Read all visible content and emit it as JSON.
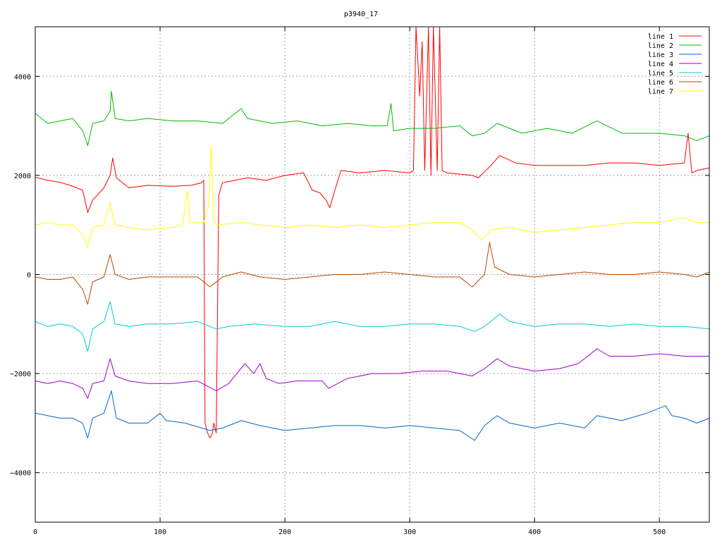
{
  "chart_data": {
    "type": "line",
    "title": "p3940_17",
    "xlabel": "",
    "ylabel": "",
    "xlim": [
      0,
      540
    ],
    "ylim": [
      -5000,
      5000
    ],
    "xticks": [
      0,
      100,
      200,
      300,
      400,
      500
    ],
    "yticks": [
      -4000,
      -2000,
      0,
      2000,
      4000
    ],
    "grid": true,
    "legend_position": "top-right",
    "series": [
      {
        "name": "line 1",
        "color": "#ff0000",
        "points": [
          [
            0,
            1960
          ],
          [
            10,
            1900
          ],
          [
            20,
            1860
          ],
          [
            30,
            1780
          ],
          [
            38,
            1700
          ],
          [
            42,
            1250
          ],
          [
            46,
            1500
          ],
          [
            55,
            1750
          ],
          [
            60,
            2000
          ],
          [
            62,
            2350
          ],
          [
            65,
            1950
          ],
          [
            75,
            1750
          ],
          [
            90,
            1800
          ],
          [
            110,
            1780
          ],
          [
            125,
            1800
          ],
          [
            133,
            1850
          ],
          [
            135,
            1900
          ],
          [
            136,
            -3000
          ],
          [
            138,
            -3200
          ],
          [
            140,
            -3300
          ],
          [
            142,
            -3200
          ],
          [
            143,
            -3000
          ],
          [
            145,
            -3200
          ],
          [
            147,
            1600
          ],
          [
            150,
            1850
          ],
          [
            160,
            1900
          ],
          [
            170,
            1950
          ],
          [
            185,
            1900
          ],
          [
            200,
            2000
          ],
          [
            215,
            2050
          ],
          [
            222,
            1700
          ],
          [
            228,
            1650
          ],
          [
            233,
            1500
          ],
          [
            236,
            1350
          ],
          [
            240,
            1700
          ],
          [
            245,
            2100
          ],
          [
            260,
            2050
          ],
          [
            280,
            2100
          ],
          [
            300,
            2050
          ],
          [
            303,
            2100
          ],
          [
            305,
            5000
          ],
          [
            308,
            3600
          ],
          [
            310,
            4700
          ],
          [
            312,
            2100
          ],
          [
            315,
            5000
          ],
          [
            317,
            2000
          ],
          [
            319,
            5000
          ],
          [
            322,
            2100
          ],
          [
            324,
            5000
          ],
          [
            326,
            2100
          ],
          [
            330,
            2050
          ],
          [
            350,
            2000
          ],
          [
            355,
            1950
          ],
          [
            365,
            2200
          ],
          [
            372,
            2400
          ],
          [
            385,
            2250
          ],
          [
            400,
            2200
          ],
          [
            420,
            2200
          ],
          [
            440,
            2200
          ],
          [
            460,
            2250
          ],
          [
            480,
            2250
          ],
          [
            500,
            2200
          ],
          [
            520,
            2250
          ],
          [
            523,
            2850
          ],
          [
            526,
            2050
          ],
          [
            530,
            2100
          ],
          [
            540,
            2150
          ]
        ]
      },
      {
        "name": "line 2",
        "color": "#00bb00",
        "points": [
          [
            0,
            3250
          ],
          [
            10,
            3050
          ],
          [
            20,
            3100
          ],
          [
            30,
            3150
          ],
          [
            38,
            2900
          ],
          [
            42,
            2600
          ],
          [
            46,
            3050
          ],
          [
            55,
            3100
          ],
          [
            60,
            3300
          ],
          [
            61,
            3700
          ],
          [
            64,
            3150
          ],
          [
            75,
            3100
          ],
          [
            90,
            3150
          ],
          [
            110,
            3100
          ],
          [
            130,
            3100
          ],
          [
            150,
            3050
          ],
          [
            165,
            3350
          ],
          [
            170,
            3150
          ],
          [
            190,
            3050
          ],
          [
            210,
            3100
          ],
          [
            230,
            3000
          ],
          [
            250,
            3050
          ],
          [
            270,
            3000
          ],
          [
            282,
            3000
          ],
          [
            285,
            3450
          ],
          [
            287,
            2900
          ],
          [
            300,
            2950
          ],
          [
            320,
            2950
          ],
          [
            340,
            3000
          ],
          [
            350,
            2800
          ],
          [
            360,
            2850
          ],
          [
            370,
            3050
          ],
          [
            390,
            2850
          ],
          [
            410,
            2950
          ],
          [
            430,
            2850
          ],
          [
            450,
            3100
          ],
          [
            470,
            2850
          ],
          [
            500,
            2850
          ],
          [
            520,
            2800
          ],
          [
            530,
            2700
          ],
          [
            540,
            2800
          ]
        ]
      },
      {
        "name": "line 3",
        "color": "#0066cc",
        "points": [
          [
            0,
            -2800
          ],
          [
            10,
            -2850
          ],
          [
            20,
            -2900
          ],
          [
            30,
            -2900
          ],
          [
            38,
            -3000
          ],
          [
            42,
            -3300
          ],
          [
            46,
            -2900
          ],
          [
            55,
            -2800
          ],
          [
            61,
            -2350
          ],
          [
            65,
            -2900
          ],
          [
            75,
            -3000
          ],
          [
            90,
            -3000
          ],
          [
            100,
            -2800
          ],
          [
            105,
            -2950
          ],
          [
            120,
            -3000
          ],
          [
            140,
            -3150
          ],
          [
            150,
            -3100
          ],
          [
            165,
            -2950
          ],
          [
            180,
            -3050
          ],
          [
            200,
            -3150
          ],
          [
            220,
            -3100
          ],
          [
            240,
            -3050
          ],
          [
            260,
            -3050
          ],
          [
            280,
            -3100
          ],
          [
            300,
            -3050
          ],
          [
            320,
            -3100
          ],
          [
            340,
            -3150
          ],
          [
            352,
            -3350
          ],
          [
            360,
            -3050
          ],
          [
            370,
            -2850
          ],
          [
            380,
            -3000
          ],
          [
            400,
            -3100
          ],
          [
            420,
            -3000
          ],
          [
            440,
            -3100
          ],
          [
            450,
            -2850
          ],
          [
            470,
            -2950
          ],
          [
            490,
            -2800
          ],
          [
            505,
            -2650
          ],
          [
            510,
            -2850
          ],
          [
            520,
            -2900
          ],
          [
            530,
            -3000
          ],
          [
            540,
            -2900
          ]
        ]
      },
      {
        "name": "line 4",
        "color": "#9900cc",
        "points": [
          [
            0,
            -2150
          ],
          [
            10,
            -2200
          ],
          [
            20,
            -2150
          ],
          [
            30,
            -2200
          ],
          [
            38,
            -2300
          ],
          [
            42,
            -2500
          ],
          [
            46,
            -2200
          ],
          [
            55,
            -2150
          ],
          [
            60,
            -1700
          ],
          [
            64,
            -2050
          ],
          [
            75,
            -2150
          ],
          [
            90,
            -2200
          ],
          [
            110,
            -2200
          ],
          [
            130,
            -2150
          ],
          [
            145,
            -2350
          ],
          [
            155,
            -2200
          ],
          [
            168,
            -1800
          ],
          [
            175,
            -2000
          ],
          [
            180,
            -1800
          ],
          [
            185,
            -2100
          ],
          [
            195,
            -2200
          ],
          [
            210,
            -2150
          ],
          [
            230,
            -2150
          ],
          [
            235,
            -2300
          ],
          [
            250,
            -2100
          ],
          [
            270,
            -2000
          ],
          [
            290,
            -2000
          ],
          [
            310,
            -1950
          ],
          [
            330,
            -1950
          ],
          [
            350,
            -2050
          ],
          [
            360,
            -1900
          ],
          [
            370,
            -1700
          ],
          [
            380,
            -1850
          ],
          [
            400,
            -1950
          ],
          [
            420,
            -1900
          ],
          [
            435,
            -1800
          ],
          [
            450,
            -1500
          ],
          [
            460,
            -1650
          ],
          [
            480,
            -1650
          ],
          [
            500,
            -1600
          ],
          [
            520,
            -1650
          ],
          [
            540,
            -1650
          ]
        ]
      },
      {
        "name": "line 5",
        "color": "#00cccc",
        "points": [
          [
            0,
            -950
          ],
          [
            10,
            -1050
          ],
          [
            20,
            -1000
          ],
          [
            30,
            -1050
          ],
          [
            38,
            -1200
          ],
          [
            42,
            -1550
          ],
          [
            46,
            -1100
          ],
          [
            55,
            -950
          ],
          [
            60,
            -550
          ],
          [
            64,
            -1000
          ],
          [
            75,
            -1050
          ],
          [
            90,
            -1000
          ],
          [
            110,
            -1000
          ],
          [
            130,
            -950
          ],
          [
            145,
            -1100
          ],
          [
            155,
            -1050
          ],
          [
            175,
            -1000
          ],
          [
            200,
            -1050
          ],
          [
            220,
            -1050
          ],
          [
            240,
            -950
          ],
          [
            260,
            -1050
          ],
          [
            280,
            -1050
          ],
          [
            300,
            -1000
          ],
          [
            320,
            -1000
          ],
          [
            340,
            -1050
          ],
          [
            352,
            -1150
          ],
          [
            360,
            -1050
          ],
          [
            372,
            -800
          ],
          [
            380,
            -950
          ],
          [
            400,
            -1050
          ],
          [
            420,
            -1000
          ],
          [
            440,
            -1000
          ],
          [
            460,
            -1050
          ],
          [
            480,
            -1000
          ],
          [
            500,
            -1050
          ],
          [
            520,
            -1050
          ],
          [
            540,
            -1100
          ]
        ]
      },
      {
        "name": "line 6",
        "color": "#b34700",
        "points": [
          [
            0,
            -50
          ],
          [
            10,
            -100
          ],
          [
            20,
            -100
          ],
          [
            30,
            -50
          ],
          [
            38,
            -300
          ],
          [
            42,
            -600
          ],
          [
            46,
            -150
          ],
          [
            55,
            -50
          ],
          [
            60,
            400
          ],
          [
            64,
            0
          ],
          [
            75,
            -100
          ],
          [
            90,
            -50
          ],
          [
            110,
            -50
          ],
          [
            130,
            -50
          ],
          [
            140,
            -250
          ],
          [
            150,
            -50
          ],
          [
            165,
            50
          ],
          [
            180,
            -50
          ],
          [
            200,
            -100
          ],
          [
            220,
            -50
          ],
          [
            240,
            0
          ],
          [
            260,
            0
          ],
          [
            280,
            50
          ],
          [
            300,
            0
          ],
          [
            320,
            -50
          ],
          [
            340,
            -50
          ],
          [
            350,
            -250
          ],
          [
            360,
            0
          ],
          [
            364,
            650
          ],
          [
            368,
            150
          ],
          [
            380,
            0
          ],
          [
            400,
            -50
          ],
          [
            420,
            0
          ],
          [
            440,
            50
          ],
          [
            460,
            0
          ],
          [
            480,
            0
          ],
          [
            500,
            50
          ],
          [
            520,
            0
          ],
          [
            530,
            -50
          ],
          [
            540,
            50
          ]
        ]
      },
      {
        "name": "line 7",
        "color": "#ffff00",
        "points": [
          [
            0,
            1000
          ],
          [
            10,
            1050
          ],
          [
            20,
            1000
          ],
          [
            30,
            1000
          ],
          [
            38,
            800
          ],
          [
            42,
            550
          ],
          [
            46,
            950
          ],
          [
            55,
            1000
          ],
          [
            60,
            1450
          ],
          [
            64,
            1000
          ],
          [
            75,
            950
          ],
          [
            90,
            900
          ],
          [
            110,
            950
          ],
          [
            118,
            1000
          ],
          [
            122,
            1700
          ],
          [
            124,
            1050
          ],
          [
            135,
            1050
          ],
          [
            139,
            1400
          ],
          [
            141,
            2600
          ],
          [
            143,
            1100
          ],
          [
            145,
            1000
          ],
          [
            165,
            1050
          ],
          [
            180,
            1000
          ],
          [
            200,
            950
          ],
          [
            220,
            1000
          ],
          [
            240,
            950
          ],
          [
            260,
            1000
          ],
          [
            280,
            950
          ],
          [
            300,
            1000
          ],
          [
            320,
            1050
          ],
          [
            340,
            1050
          ],
          [
            350,
            900
          ],
          [
            358,
            700
          ],
          [
            365,
            900
          ],
          [
            380,
            950
          ],
          [
            400,
            850
          ],
          [
            420,
            900
          ],
          [
            440,
            950
          ],
          [
            460,
            1000
          ],
          [
            480,
            1050
          ],
          [
            500,
            1050
          ],
          [
            520,
            1150
          ],
          [
            530,
            1050
          ],
          [
            540,
            1050
          ]
        ]
      }
    ]
  }
}
